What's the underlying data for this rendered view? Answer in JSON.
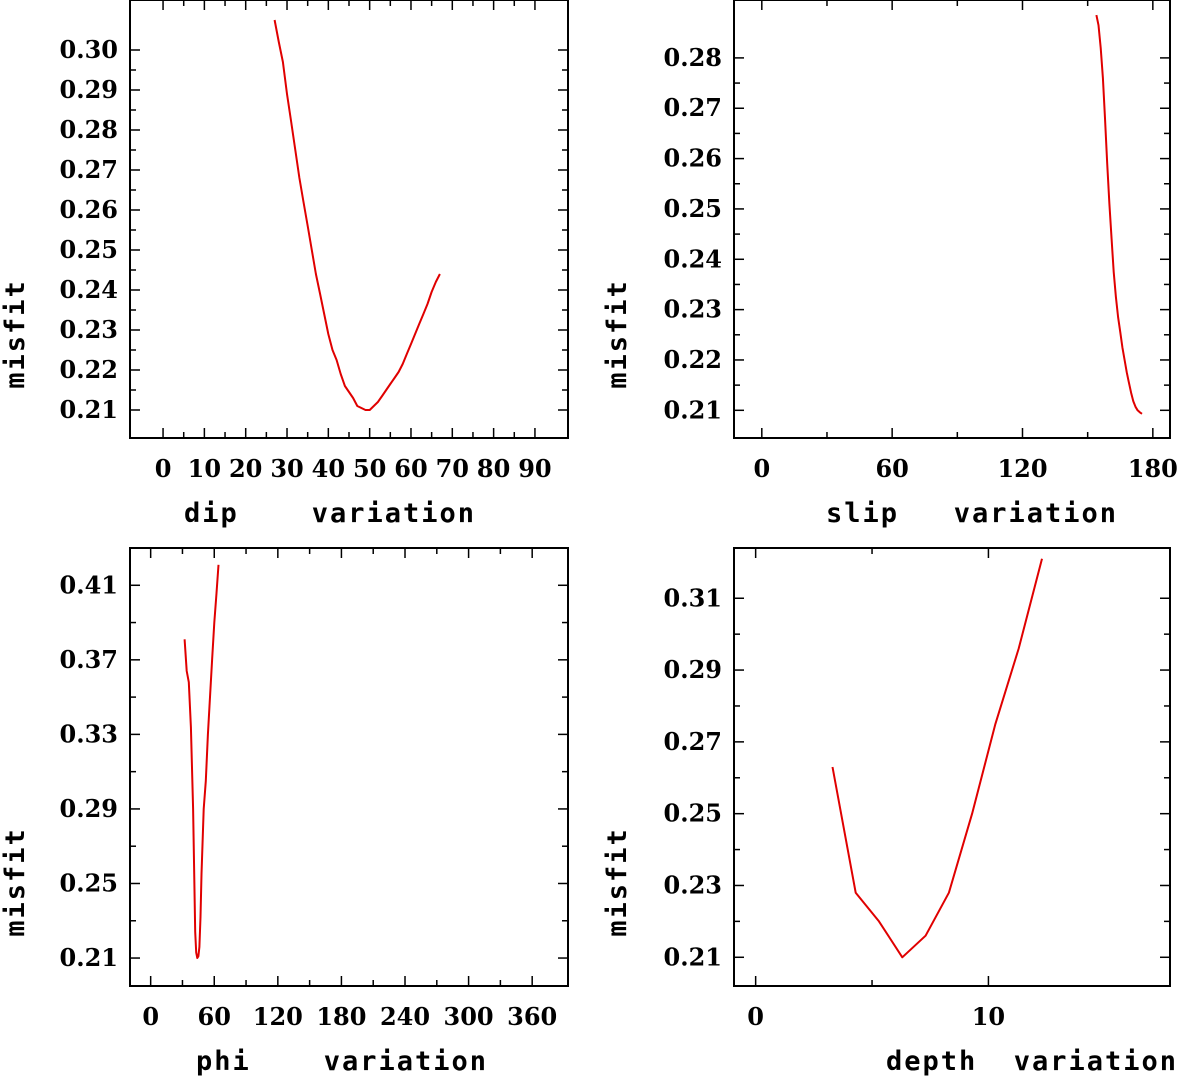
{
  "chart_data": [
    {
      "type": "line",
      "xlabel": "dip    variation",
      "ylabel": "misfit",
      "xlim": [
        -8,
        98
      ],
      "ylim": [
        0.203,
        0.3125
      ],
      "xticks": [
        0,
        10,
        20,
        30,
        40,
        50,
        60,
        70,
        80,
        90
      ],
      "yticks": [
        0.21,
        0.22,
        0.23,
        0.24,
        0.25,
        0.26,
        0.27,
        0.28,
        0.29,
        0.3
      ],
      "xtick_labels": [
        "0",
        "10",
        "20",
        "30",
        "40",
        "50",
        "60",
        "70",
        "80",
        "90"
      ],
      "ytick_labels": [
        "0.21",
        "0.22",
        "0.23",
        "0.24",
        "0.25",
        "0.26",
        "0.27",
        "0.28",
        "0.29",
        "0.30"
      ],
      "series_color": "#e00000",
      "x": [
        27,
        28,
        29,
        30,
        31,
        32,
        33,
        34,
        35,
        36,
        37,
        38,
        39,
        40,
        41,
        42,
        43,
        44,
        45,
        46,
        47,
        48,
        49,
        50,
        51,
        52,
        53,
        54,
        55,
        56,
        57,
        58,
        59,
        60,
        61,
        62,
        63,
        64,
        65,
        66,
        67
      ],
      "y": [
        0.3075,
        0.302,
        0.297,
        0.289,
        0.282,
        0.275,
        0.268,
        0.262,
        0.256,
        0.25,
        0.244,
        0.239,
        0.234,
        0.229,
        0.225,
        0.2225,
        0.219,
        0.216,
        0.2145,
        0.213,
        0.211,
        0.2105,
        0.21,
        0.21,
        0.211,
        0.212,
        0.2135,
        0.215,
        0.2165,
        0.218,
        0.2195,
        0.2215,
        0.224,
        0.2265,
        0.229,
        0.2315,
        0.234,
        0.2365,
        0.2395,
        0.242,
        0.244
      ]
    },
    {
      "type": "line",
      "xlabel": "slip   variation",
      "ylabel": "misfit",
      "xlim": [
        -12.8,
        187.9
      ],
      "ylim": [
        0.2045,
        0.2915
      ],
      "xticks": [
        0,
        60,
        120,
        180
      ],
      "yticks": [
        0.21,
        0.22,
        0.23,
        0.24,
        0.25,
        0.26,
        0.27,
        0.28
      ],
      "xtick_labels": [
        "0",
        "60",
        "120",
        "180"
      ],
      "ytick_labels": [
        "0.21",
        "0.22",
        "0.23",
        "0.24",
        "0.25",
        "0.26",
        "0.27",
        "0.28"
      ],
      "series_color": "#e00000",
      "x": [
        154,
        155,
        156,
        157,
        158,
        159,
        160,
        161,
        162,
        163,
        164,
        165,
        166,
        167,
        168,
        169,
        170,
        171,
        172,
        173,
        174,
        175
      ],
      "y": [
        0.2885,
        0.2865,
        0.282,
        0.276,
        0.268,
        0.259,
        0.251,
        0.244,
        0.2375,
        0.2325,
        0.2285,
        0.2255,
        0.2225,
        0.22,
        0.2175,
        0.2155,
        0.2135,
        0.2118,
        0.2107,
        0.21,
        0.2096,
        0.2093
      ]
    },
    {
      "type": "line",
      "xlabel": "phi    variation",
      "ylabel": "misfit",
      "xlim": [
        -19.5,
        393.8
      ],
      "ylim": [
        0.195,
        0.43
      ],
      "xticks": [
        0,
        60,
        120,
        180,
        240,
        300,
        360
      ],
      "yticks": [
        0.21,
        0.25,
        0.29,
        0.33,
        0.37,
        0.41
      ],
      "xtick_labels": [
        "0",
        "60",
        "120",
        "180",
        "240",
        "300",
        "360"
      ],
      "ytick_labels": [
        "0.21",
        "0.25",
        "0.29",
        "0.33",
        "0.37",
        "0.41"
      ],
      "series_color": "#e00000",
      "x": [
        32,
        34,
        36,
        38,
        40,
        42,
        43,
        44,
        45,
        46,
        47,
        48,
        50,
        52,
        54,
        56,
        58,
        60,
        62,
        64
      ],
      "y": [
        0.381,
        0.364,
        0.358,
        0.334,
        0.29,
        0.224,
        0.213,
        0.21,
        0.211,
        0.216,
        0.232,
        0.255,
        0.29,
        0.305,
        0.33,
        0.35,
        0.37,
        0.39,
        0.405,
        0.421
      ]
    },
    {
      "type": "line",
      "xlabel": "depth  variation",
      "ylabel": "misfit",
      "xlim": [
        -0.93,
        17.8
      ],
      "ylim": [
        0.202,
        0.324
      ],
      "xticks": [
        0,
        10
      ],
      "yticks": [
        0.21,
        0.23,
        0.25,
        0.27,
        0.29,
        0.31
      ],
      "xtick_labels": [
        "0",
        "10"
      ],
      "ytick_labels": [
        "0.21",
        "0.23",
        "0.25",
        "0.27",
        "0.29",
        "0.31"
      ],
      "series_color": "#e00000",
      "x": [
        3.3,
        4.3,
        5.3,
        6.3,
        7.3,
        8.3,
        9.3,
        10.3,
        11.3,
        12.3
      ],
      "y": [
        0.263,
        0.228,
        0.22,
        0.21,
        0.216,
        0.228,
        0.25,
        0.275,
        0.296,
        0.321
      ]
    }
  ]
}
